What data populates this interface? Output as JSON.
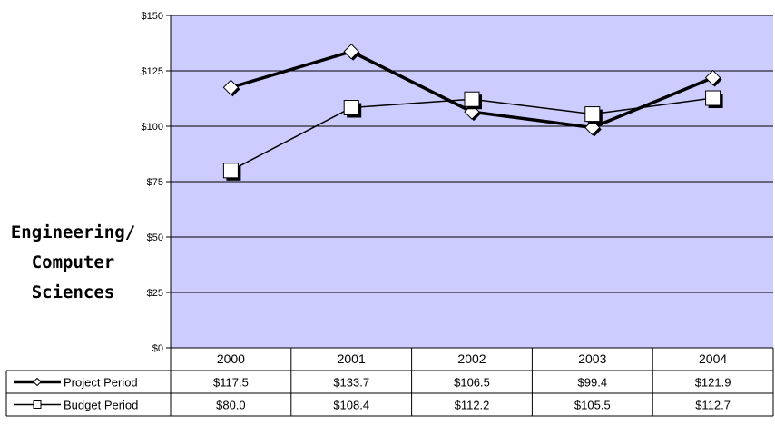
{
  "chart_data": {
    "type": "line",
    "categories": [
      "2000",
      "2001",
      "2002",
      "2003",
      "2004"
    ],
    "series": [
      {
        "name": "Project Period",
        "values": [
          117.5,
          133.7,
          106.5,
          99.4,
          121.9
        ],
        "labels": [
          "$117.5",
          "$133.7",
          "$106.5",
          "$99.4",
          "$121.9"
        ],
        "marker": "diamond"
      },
      {
        "name": "Budget Period",
        "values": [
          80.0,
          108.4,
          112.2,
          105.5,
          112.7
        ],
        "labels": [
          "$80.0",
          "$108.4",
          "$112.2",
          "$105.5",
          "$112.7"
        ],
        "marker": "square"
      }
    ],
    "ylabel_lines": [
      "Engineering/",
      "Computer",
      "Sciences"
    ],
    "ylim": [
      0,
      150
    ],
    "yticks": [
      0,
      25,
      50,
      75,
      100,
      125,
      150
    ],
    "ytick_labels": [
      "$0",
      "$25",
      "$50",
      "$75",
      "$100",
      "$125",
      "$150"
    ],
    "grid": true,
    "legend": "data table below chart",
    "colors": {
      "plot_background": "#ccccff",
      "lines": "#000000",
      "marker_fill": "#ffffff"
    }
  }
}
